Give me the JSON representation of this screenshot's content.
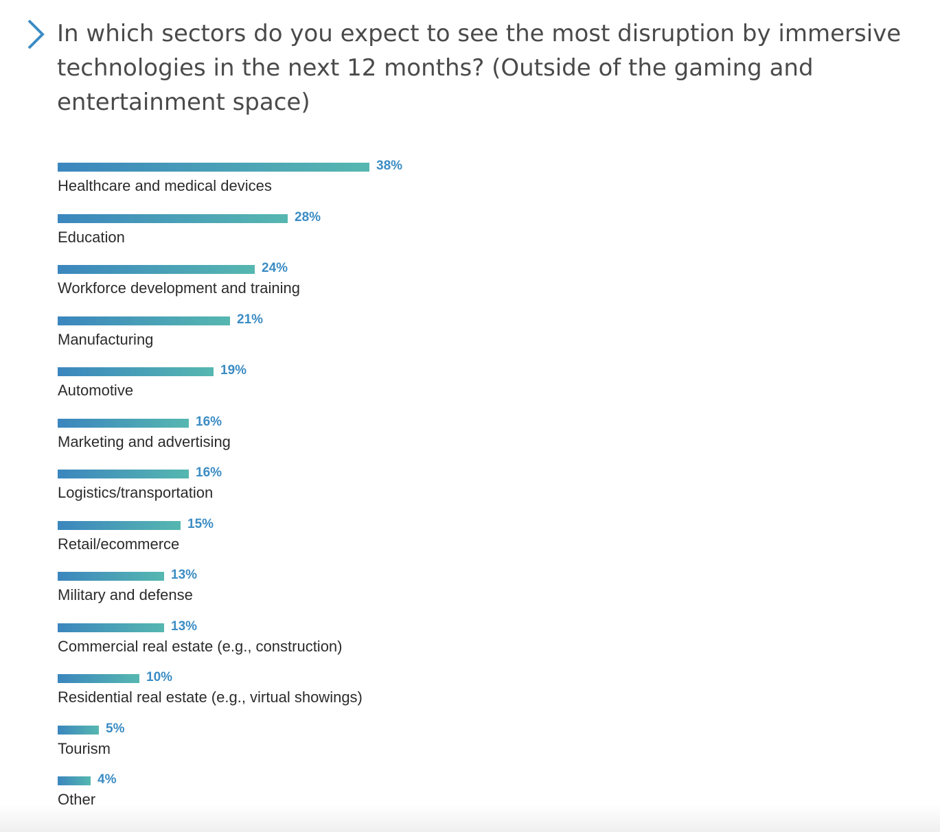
{
  "title": "In which sectors do you expect to see the most disruption by immersive technologies in the next 12 months? (Outside of the gaming and entertainment space)",
  "colors": {
    "bar_start": "#3b86be",
    "bar_end": "#56b7b0",
    "value_text": "#3b8cc4",
    "chevron": "#3b8cc4"
  },
  "chart_data": {
    "type": "bar",
    "orientation": "horizontal",
    "title": "In which sectors do you expect to see the most disruption by immersive technologies in the next 12 months? (Outside of the gaming and entertainment space)",
    "xlabel": "",
    "ylabel": "",
    "unit": "%",
    "xlim": [
      0,
      38
    ],
    "categories": [
      "Healthcare and medical devices",
      "Education",
      "Workforce development and training",
      "Manufacturing",
      "Automotive",
      "Marketing and advertising",
      "Logistics/transportation",
      "Retail/ecommerce",
      "Military and defense",
      "Commercial real estate (e.g., construction)",
      "Residential real estate (e.g., virtual showings)",
      "Tourism",
      "Other"
    ],
    "values": [
      38,
      28,
      24,
      21,
      19,
      16,
      16,
      15,
      13,
      13,
      10,
      5,
      4
    ],
    "value_labels": [
      "38%",
      "28%",
      "24%",
      "21%",
      "19%",
      "16%",
      "16%",
      "15%",
      "13%",
      "13%",
      "10%",
      "5%",
      "4%"
    ]
  }
}
